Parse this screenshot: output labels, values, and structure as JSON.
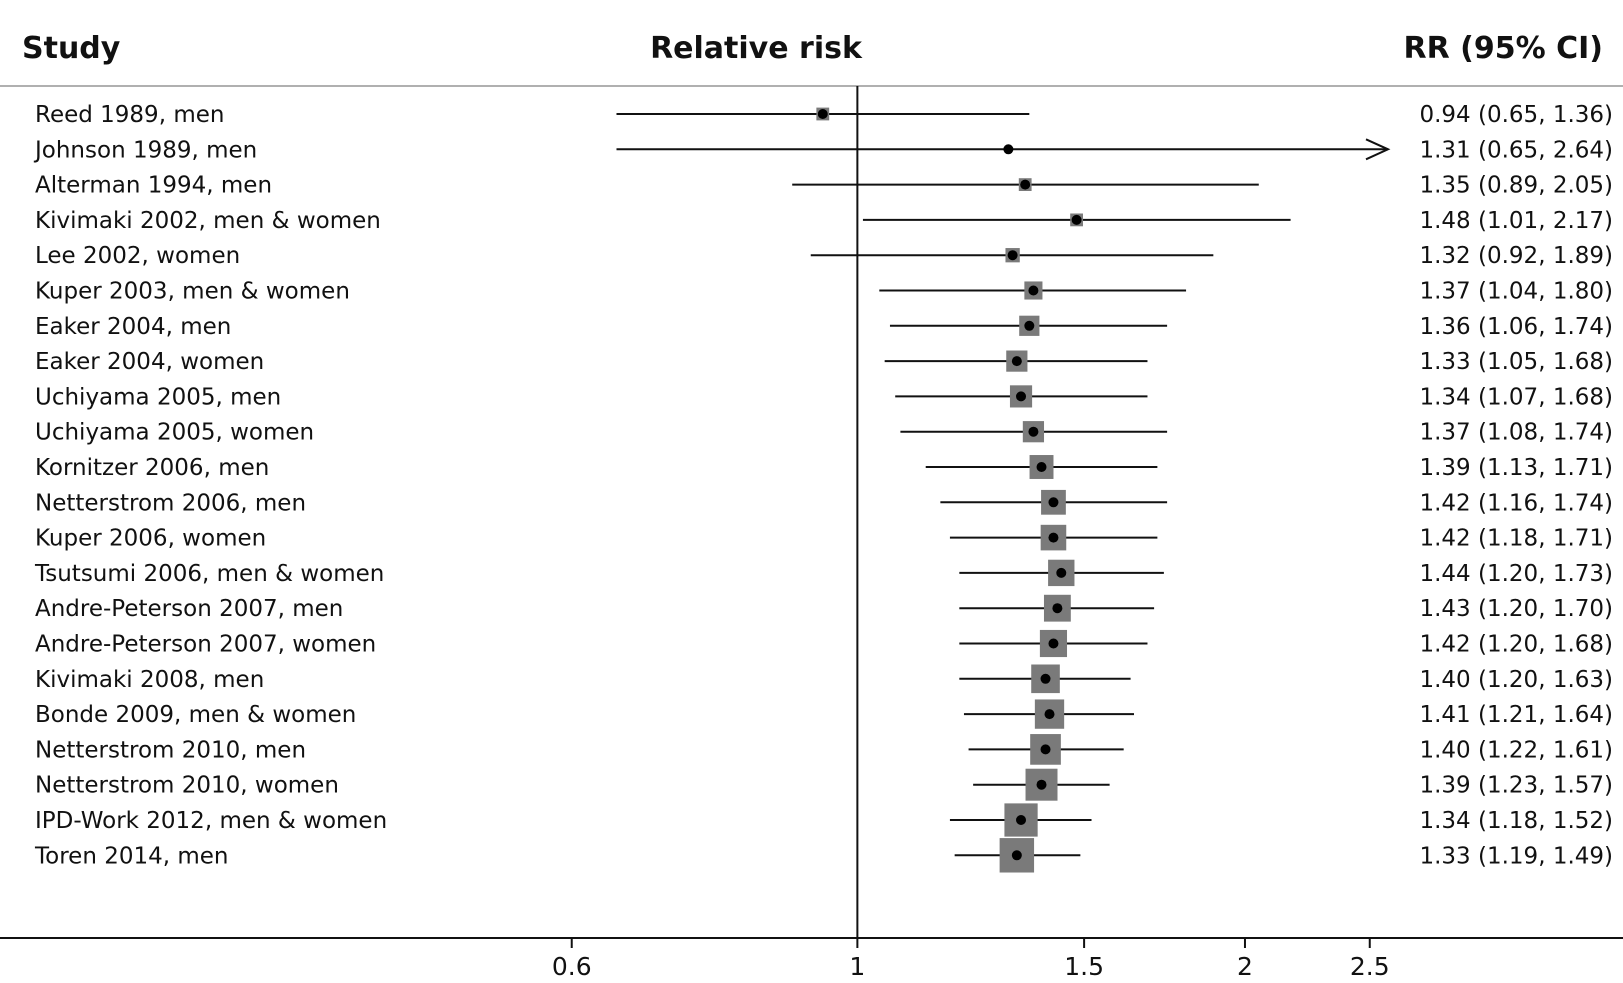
{
  "chart_data": {
    "type": "forest",
    "headers": {
      "study": "Study",
      "plot": "Relative risk",
      "ci": "RR (95% CI)"
    },
    "x_scale": "log",
    "xlim": [
      0.4,
      3.3
    ],
    "null_line": 1,
    "xticks": [
      0.6,
      1,
      1.5,
      2,
      2.5
    ],
    "xtick_labels": [
      "0.6",
      "1",
      "1.5",
      "2",
      "2.5"
    ],
    "studies": [
      {
        "label": "Reed 1989, men",
        "rr": 0.94,
        "lo": 0.65,
        "hi": 1.36,
        "ci_text": "0.94 (0.65, 1.36)",
        "weight": 0.2
      },
      {
        "label": "Johnson 1989, men",
        "rr": 1.31,
        "lo": 0.65,
        "hi": 2.64,
        "ci_text": "1.31 (0.65, 2.64)",
        "weight": 0.05,
        "arrow_right": true
      },
      {
        "label": "Alterman 1994, men",
        "rr": 1.35,
        "lo": 0.89,
        "hi": 2.05,
        "ci_text": "1.35 (0.89, 2.05)",
        "weight": 0.2
      },
      {
        "label": "Kivimaki 2002, men & women",
        "rr": 1.48,
        "lo": 1.01,
        "hi": 2.17,
        "ci_text": "1.48 (1.01, 2.17)",
        "weight": 0.2
      },
      {
        "label": "Lee 2002, women",
        "rr": 1.32,
        "lo": 0.92,
        "hi": 1.89,
        "ci_text": "1.32 (0.92, 1.89)",
        "weight": 0.25
      },
      {
        "label": "Kuper 2003, men & women",
        "rr": 1.37,
        "lo": 1.04,
        "hi": 1.8,
        "ci_text": "1.37 (1.04, 1.80)",
        "weight": 0.4
      },
      {
        "label": "Eaker 2004, men",
        "rr": 1.36,
        "lo": 1.06,
        "hi": 1.74,
        "ci_text": "1.36 (1.06, 1.74)",
        "weight": 0.5
      },
      {
        "label": "Eaker 2004, women",
        "rr": 1.33,
        "lo": 1.05,
        "hi": 1.68,
        "ci_text": "1.33 (1.05, 1.68)",
        "weight": 0.55
      },
      {
        "label": "Uchiyama 2005, men",
        "rr": 1.34,
        "lo": 1.07,
        "hi": 1.68,
        "ci_text": "1.34 (1.07, 1.68)",
        "weight": 0.6
      },
      {
        "label": "Uchiyama 2005, women",
        "rr": 1.37,
        "lo": 1.08,
        "hi": 1.74,
        "ci_text": "1.37 (1.08, 1.74)",
        "weight": 0.55
      },
      {
        "label": "Kornitzer 2006, men",
        "rr": 1.39,
        "lo": 1.13,
        "hi": 1.71,
        "ci_text": "1.39 (1.13, 1.71)",
        "weight": 0.7
      },
      {
        "label": "Netterstrom 2006, men",
        "rr": 1.42,
        "lo": 1.16,
        "hi": 1.74,
        "ci_text": "1.42 (1.16, 1.74)",
        "weight": 0.75
      },
      {
        "label": "Kuper 2006, women",
        "rr": 1.42,
        "lo": 1.18,
        "hi": 1.71,
        "ci_text": "1.42 (1.18, 1.71)",
        "weight": 0.8
      },
      {
        "label": "Tsutsumi 2006, men & women",
        "rr": 1.44,
        "lo": 1.2,
        "hi": 1.73,
        "ci_text": "1.44 (1.20, 1.73)",
        "weight": 0.85
      },
      {
        "label": "Andre-Peterson 2007, men",
        "rr": 1.43,
        "lo": 1.2,
        "hi": 1.7,
        "ci_text": "1.43 (1.20, 1.70)",
        "weight": 0.88
      },
      {
        "label": "Andre-Peterson 2007, women",
        "rr": 1.42,
        "lo": 1.2,
        "hi": 1.68,
        "ci_text": "1.42 (1.20, 1.68)",
        "weight": 0.9
      },
      {
        "label": "Kivimaki 2008, men",
        "rr": 1.4,
        "lo": 1.2,
        "hi": 1.63,
        "ci_text": "1.40 (1.20, 1.63)",
        "weight": 1.0
      },
      {
        "label": "Bonde 2009, men & women",
        "rr": 1.41,
        "lo": 1.21,
        "hi": 1.64,
        "ci_text": "1.41 (1.21, 1.64)",
        "weight": 1.05
      },
      {
        "label": "Netterstrom 2010, men",
        "rr": 1.4,
        "lo": 1.22,
        "hi": 1.61,
        "ci_text": "1.40 (1.22, 1.61)",
        "weight": 1.15
      },
      {
        "label": "Netterstrom 2010, women",
        "rr": 1.39,
        "lo": 1.23,
        "hi": 1.57,
        "ci_text": "1.39 (1.23, 1.57)",
        "weight": 1.25
      },
      {
        "label": "IPD-Work 2012, men & women",
        "rr": 1.34,
        "lo": 1.18,
        "hi": 1.52,
        "ci_text": "1.34 (1.18, 1.52)",
        "weight": 1.35
      },
      {
        "label": "Toren 2014, men",
        "rr": 1.33,
        "lo": 1.19,
        "hi": 1.49,
        "ci_text": "1.33 (1.19, 1.49)",
        "weight": 1.45
      }
    ],
    "colors": {
      "box": "#7a7a7a",
      "line": "#111111",
      "point": "#000000",
      "rule": "#b0b0b0"
    }
  }
}
